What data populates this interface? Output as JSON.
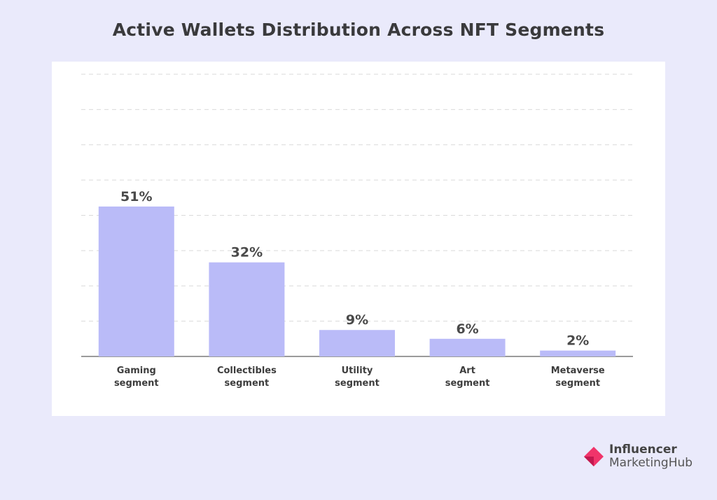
{
  "title": "Active Wallets Distribution Across NFT Segments",
  "colors": {
    "background": "#eaeafb",
    "bar": "#babbf8",
    "brand_pink": "#f0346a",
    "brand_dark": "#c2184f"
  },
  "brand": {
    "line1": "Influencer",
    "line2": "MarketingHub",
    "icon": "influencer-marketinghub-logo-icon"
  },
  "chart_data": {
    "type": "bar",
    "title": "Active Wallets Distribution Across NFT Segments",
    "categories": [
      "Gaming segment",
      "Collectibles segment",
      "Utility segment",
      "Art segment",
      "Metaverse segment"
    ],
    "category_lines": [
      [
        "Gaming",
        "segment"
      ],
      [
        "Collectibles",
        "segment"
      ],
      [
        "Utility",
        "segment"
      ],
      [
        "Art",
        "segment"
      ],
      [
        "Metaverse",
        "segment"
      ]
    ],
    "values": [
      51,
      32,
      9,
      6,
      2
    ],
    "value_labels": [
      "51%",
      "32%",
      "9%",
      "6%",
      "2%"
    ],
    "unit": "%",
    "ylim": [
      0,
      96
    ],
    "grid_lines": 8,
    "grid": true,
    "legend": "none",
    "xlabel": "",
    "ylabel": ""
  }
}
